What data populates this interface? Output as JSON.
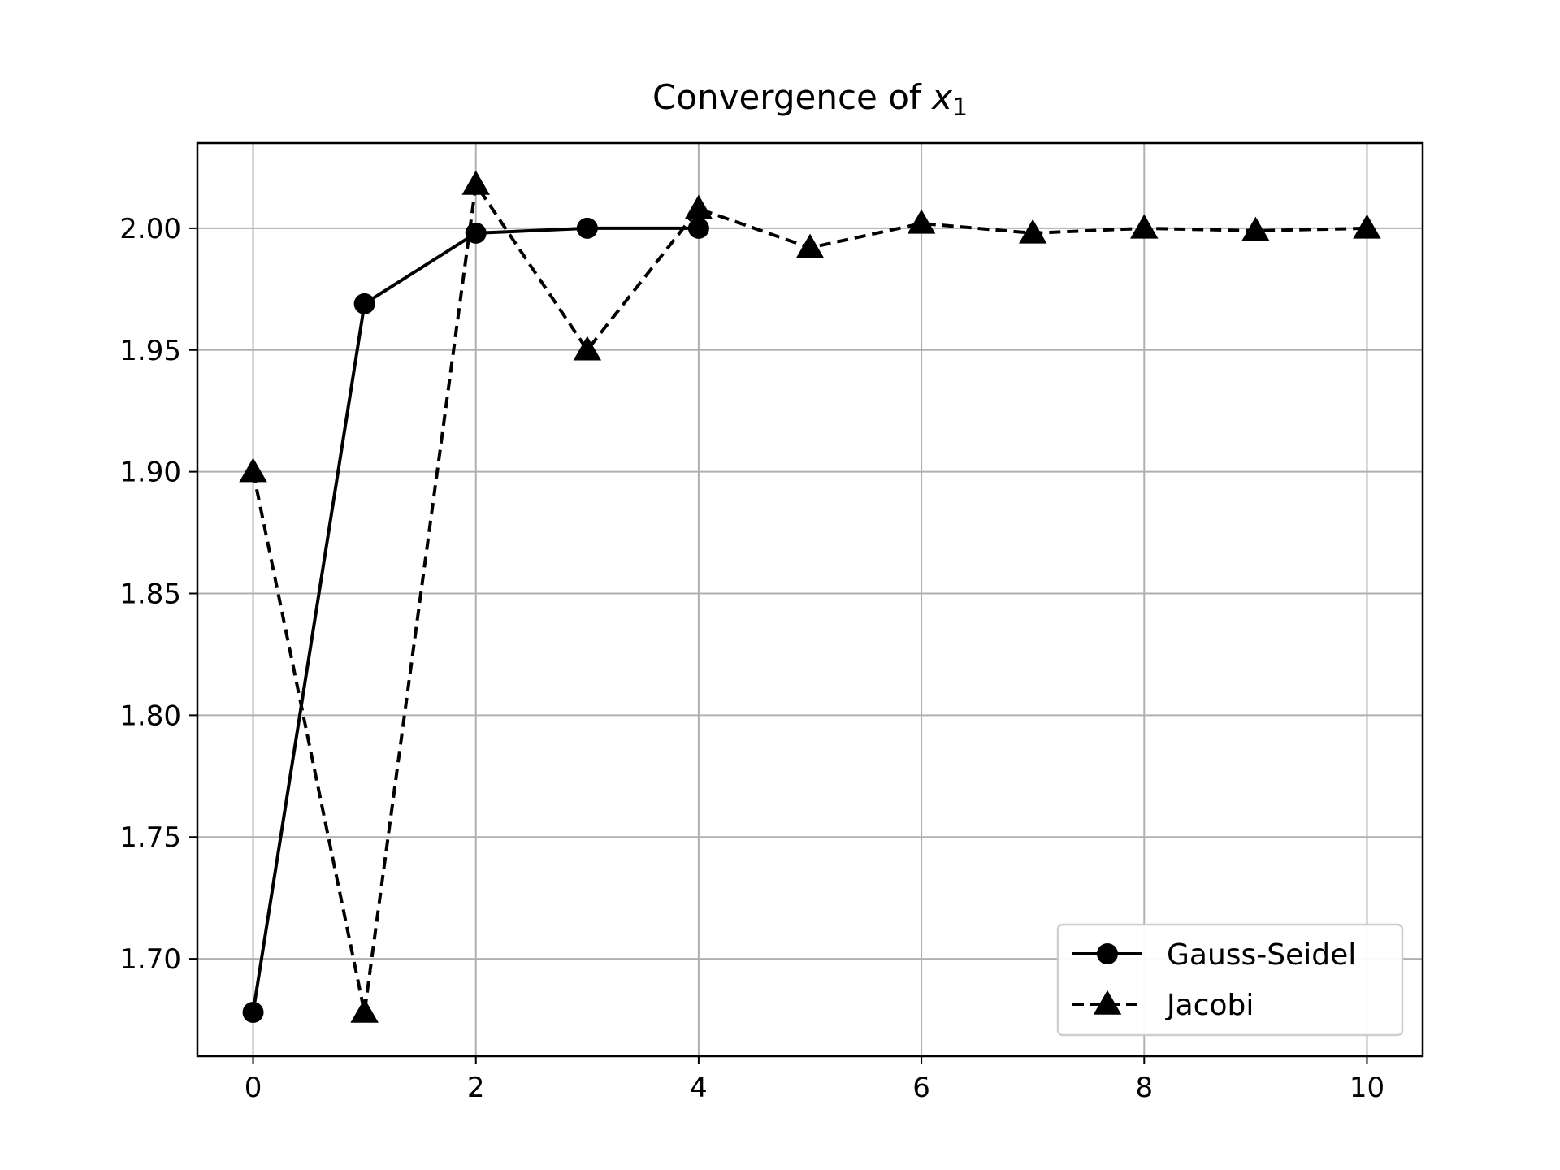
{
  "chart_data": {
    "type": "line",
    "title_main": "Convergence of ",
    "title_var": "x",
    "title_sub": "1",
    "xlabel": "",
    "ylabel": "",
    "xlim": [
      -0.5,
      10.5
    ],
    "ylim": [
      1.66,
      2.035
    ],
    "x_ticks": [
      0,
      2,
      4,
      6,
      8,
      10
    ],
    "y_ticks": [
      1.7,
      1.75,
      1.8,
      1.85,
      1.9,
      1.95,
      2.0
    ],
    "grid": true,
    "legend_position": "lower-right",
    "series": [
      {
        "name": "Gauss-Seidel",
        "line_style": "solid",
        "marker": "circle",
        "color": "#000000",
        "x": [
          0,
          1,
          2,
          3,
          4
        ],
        "y": [
          1.678,
          1.969,
          1.998,
          2.0,
          2.0
        ]
      },
      {
        "name": "Jacobi",
        "line_style": "dashed",
        "marker": "triangle",
        "color": "#000000",
        "x": [
          0,
          1,
          2,
          3,
          4,
          5,
          6,
          7,
          8,
          9,
          10
        ],
        "y": [
          1.9,
          1.678,
          2.018,
          1.95,
          2.008,
          1.992,
          2.002,
          1.998,
          2.0,
          1.999,
          2.0
        ]
      }
    ]
  }
}
